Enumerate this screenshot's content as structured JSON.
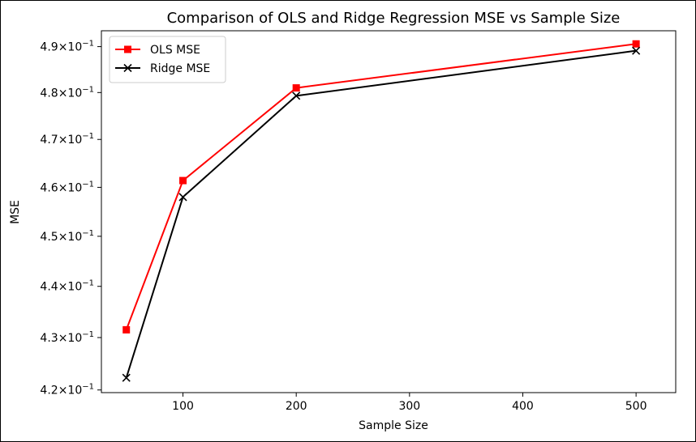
{
  "chart_data": {
    "type": "line",
    "title": "Comparison of OLS and Ridge Regression MSE vs Sample Size",
    "xlabel": "Sample Size",
    "ylabel": "MSE",
    "yscale": "log",
    "x": [
      50,
      100,
      200,
      500
    ],
    "xlim": [
      28,
      535
    ],
    "ylim": [
      0.4195,
      0.4935
    ],
    "x_ticks": [
      100,
      200,
      300,
      400,
      500
    ],
    "x_tick_labels": [
      "100",
      "200",
      "300",
      "400",
      "500"
    ],
    "y_ticks": [
      0.42,
      0.43,
      0.44,
      0.45,
      0.46,
      0.47,
      0.48,
      0.49
    ],
    "y_tick_labels": [
      {
        "mantissa": "4.2",
        "times": "×",
        "base": "10",
        "exp": "−1"
      },
      {
        "mantissa": "4.3",
        "times": "×",
        "base": "10",
        "exp": "−1"
      },
      {
        "mantissa": "4.4",
        "times": "×",
        "base": "10",
        "exp": "−1"
      },
      {
        "mantissa": "4.5",
        "times": "×",
        "base": "10",
        "exp": "−1"
      },
      {
        "mantissa": "4.6",
        "times": "×",
        "base": "10",
        "exp": "−1"
      },
      {
        "mantissa": "4.7",
        "times": "×",
        "base": "10",
        "exp": "−1"
      },
      {
        "mantissa": "4.8",
        "times": "×",
        "base": "10",
        "exp": "−1"
      },
      {
        "mantissa": "4.9",
        "times": "×",
        "base": "10",
        "exp": "−1"
      }
    ],
    "grid": false,
    "legend_position": "top-left",
    "series": [
      {
        "name": "OLS MSE",
        "values": [
          0.4315,
          0.4614,
          0.481,
          0.4906
        ],
        "color": "#ff0000",
        "marker": "square"
      },
      {
        "name": "Ridge MSE",
        "values": [
          0.4223,
          0.458,
          0.4793,
          0.4891
        ],
        "color": "#000000",
        "marker": "x"
      }
    ]
  }
}
